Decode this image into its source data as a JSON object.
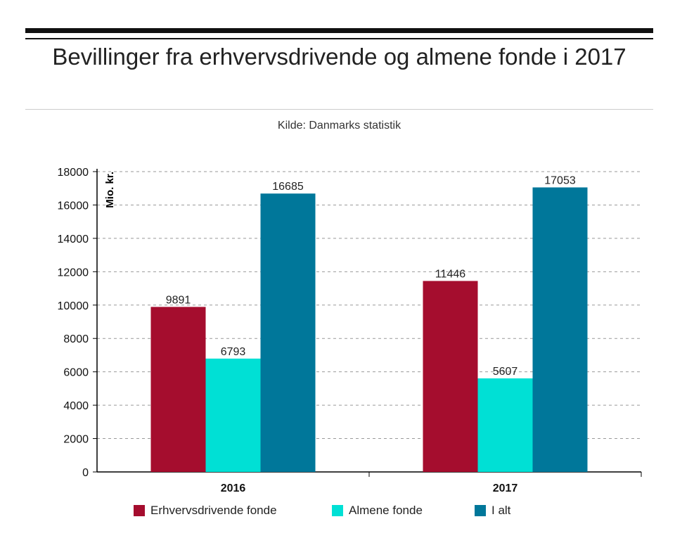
{
  "header": {
    "title": "Bevillinger fra erhvervsdrivende og almene fonde i 2017",
    "subtitle": "Kilde: Danmarks statistik"
  },
  "chart_data": {
    "type": "bar",
    "title": "Bevillinger fra erhvervsdrivende og almene fonde i 2017",
    "subtitle": "Kilde: Danmarks statistik",
    "xlabel": "",
    "ylabel": "Mio. kr.",
    "categories": [
      "2016",
      "2017"
    ],
    "series": [
      {
        "name": "Erhvervsdrivende fonde",
        "color": "#a50d2e",
        "values": [
          9891,
          11446
        ]
      },
      {
        "name": "Almene fonde",
        "color": "#00e0d5",
        "values": [
          6793,
          5607
        ]
      },
      {
        "name": "I alt",
        "color": "#00779a",
        "values": [
          16685,
          17053
        ]
      }
    ],
    "ylim": [
      0,
      18000
    ],
    "yticks": [
      0,
      2000,
      4000,
      6000,
      8000,
      10000,
      12000,
      14000,
      16000,
      18000
    ],
    "grid": true,
    "legend": "bottom"
  }
}
